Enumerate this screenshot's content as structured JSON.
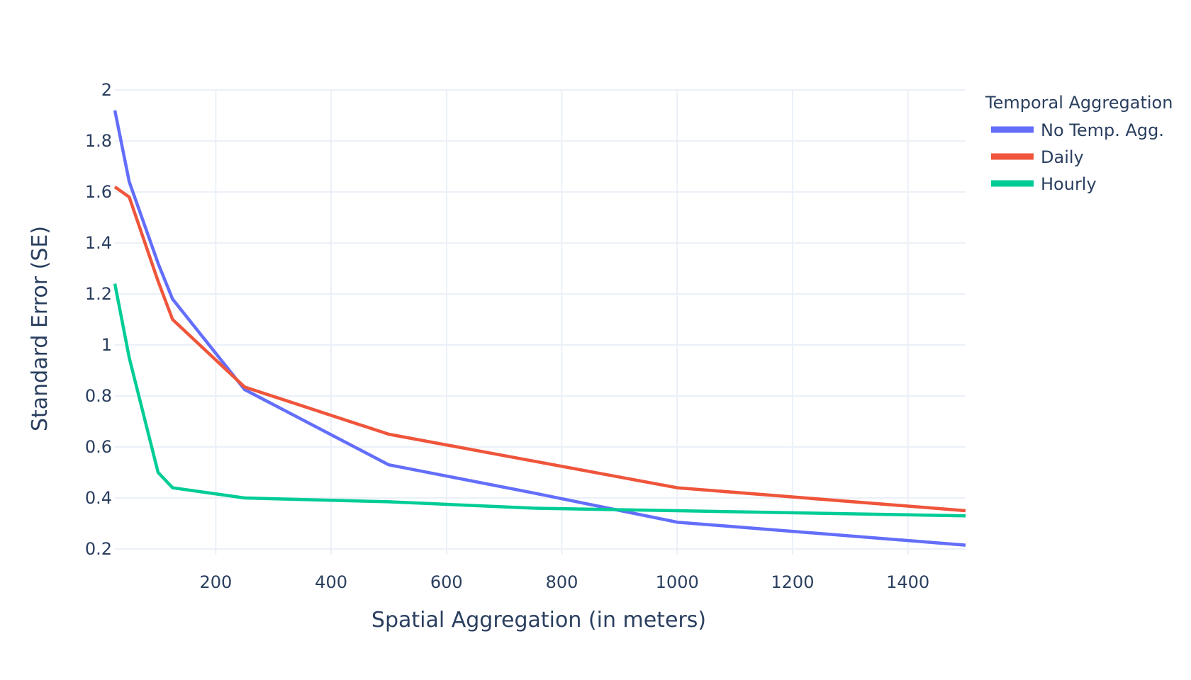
{
  "chart_data": {
    "type": "line",
    "title": "",
    "xlabel": "Spatial Aggregation (in meters)",
    "ylabel": "Standard Error (SE)",
    "xlim": [
      25,
      1500
    ],
    "ylim": [
      0.2,
      2
    ],
    "xticks": [
      200,
      400,
      600,
      800,
      1000,
      1200,
      1400
    ],
    "yticks": [
      0.2,
      0.4,
      0.6,
      0.8,
      1,
      1.2,
      1.4,
      1.6,
      1.8,
      2
    ],
    "xtick_labels": [
      "200",
      "400",
      "600",
      "800",
      "1000",
      "1200",
      "1400"
    ],
    "ytick_labels": [
      "0.2",
      "0.4",
      "0.6",
      "0.8",
      "1",
      "1.2",
      "1.4",
      "1.6",
      "1.8",
      "2"
    ],
    "grid": true,
    "legend": {
      "title": "Temporal Aggregation",
      "position": "right"
    },
    "x": [
      25,
      50,
      100,
      125,
      250,
      500,
      750,
      1000,
      1500
    ],
    "series": [
      {
        "name": "No Temp. Agg.",
        "color": "#636efa",
        "values": [
          1.92,
          1.64,
          1.32,
          1.18,
          0.825,
          0.53,
          0.42,
          0.305,
          0.215
        ]
      },
      {
        "name": "Daily",
        "color": "#ef553b",
        "values": [
          1.62,
          1.58,
          1.25,
          1.1,
          0.835,
          0.65,
          0.545,
          0.44,
          0.35
        ]
      },
      {
        "name": "Hourly",
        "color": "#00cc96",
        "values": [
          1.24,
          0.95,
          0.5,
          0.44,
          0.4,
          0.385,
          0.36,
          0.35,
          0.33
        ]
      }
    ]
  }
}
